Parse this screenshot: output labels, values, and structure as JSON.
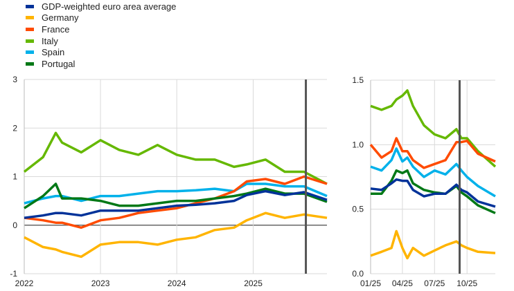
{
  "legend": [
    {
      "name": "GDP-weighted euro area average",
      "color": "#003299"
    },
    {
      "name": "Germany",
      "color": "#ffb400"
    },
    {
      "name": "France",
      "color": "#ff4b00"
    },
    {
      "name": "Italy",
      "color": "#65b800"
    },
    {
      "name": "Spain",
      "color": "#00b1ea"
    },
    {
      "name": "Portugal",
      "color": "#007816"
    }
  ],
  "chart_data": [
    {
      "type": "line",
      "xlim": [
        "2022-01-01",
        "2025-12-20"
      ],
      "ylim": [
        -1,
        3
      ],
      "yticks": [
        "-1",
        "0",
        "1",
        "2",
        "3"
      ],
      "xticks": [
        {
          "label": "2022",
          "date": "2022-01-01"
        },
        {
          "label": "2023",
          "date": "2023-01-01"
        },
        {
          "label": "2024",
          "date": "2024-01-01"
        },
        {
          "label": "2025",
          "date": "2025-01-01"
        }
      ],
      "grid": true,
      "vertical_line": "2025-09-10",
      "x": [
        "2022-01-01",
        "2022-04-01",
        "2022-06-01",
        "2022-07-01",
        "2022-10-01",
        "2023-01-01",
        "2023-04-01",
        "2023-07-01",
        "2023-10-01",
        "2024-01-01",
        "2024-04-01",
        "2024-07-01",
        "2024-10-01",
        "2024-12-01",
        "2025-03-01",
        "2025-06-01",
        "2025-09-01",
        "2025-12-20"
      ],
      "series": [
        {
          "name": "Italy",
          "color": "#65b800",
          "values": [
            1.1,
            1.4,
            1.9,
            1.7,
            1.5,
            1.75,
            1.55,
            1.45,
            1.65,
            1.45,
            1.35,
            1.35,
            1.2,
            1.25,
            1.35,
            1.1,
            1.1,
            0.85
          ]
        },
        {
          "name": "Germany",
          "color": "#ffb400",
          "values": [
            -0.25,
            -0.45,
            -0.5,
            -0.55,
            -0.65,
            -0.4,
            -0.35,
            -0.35,
            -0.4,
            -0.3,
            -0.25,
            -0.1,
            -0.05,
            0.1,
            0.25,
            0.15,
            0.22,
            0.15
          ]
        },
        {
          "name": "Spain",
          "color": "#00b1ea",
          "values": [
            0.45,
            0.55,
            0.6,
            0.6,
            0.5,
            0.6,
            0.6,
            0.65,
            0.7,
            0.7,
            0.72,
            0.75,
            0.7,
            0.85,
            0.85,
            0.8,
            0.8,
            0.6
          ]
        },
        {
          "name": "France",
          "color": "#ff4b00",
          "values": [
            0.15,
            0.1,
            0.05,
            0.05,
            -0.05,
            0.1,
            0.15,
            0.25,
            0.3,
            0.35,
            0.45,
            0.55,
            0.7,
            0.9,
            0.95,
            0.85,
            1.0,
            0.85
          ]
        },
        {
          "name": "Portugal",
          "color": "#007816",
          "values": [
            0.35,
            0.6,
            0.85,
            0.55,
            0.55,
            0.5,
            0.4,
            0.4,
            0.45,
            0.5,
            0.5,
            0.55,
            0.6,
            0.65,
            0.75,
            0.65,
            0.65,
            0.48
          ]
        },
        {
          "name": "GDP-weighted euro area average",
          "color": "#003299",
          "values": [
            0.15,
            0.2,
            0.25,
            0.25,
            0.2,
            0.3,
            0.3,
            0.3,
            0.35,
            0.4,
            0.42,
            0.45,
            0.5,
            0.62,
            0.7,
            0.62,
            0.68,
            0.52
          ]
        }
      ]
    },
    {
      "type": "line",
      "xlim": [
        "2025-01-01",
        "2025-12-20"
      ],
      "ylim": [
        0,
        1.5
      ],
      "yticks": [
        "0.0",
        "0.5",
        "1.0",
        "1.5"
      ],
      "xticks": [
        {
          "label": "01/25",
          "date": "2025-01-01"
        },
        {
          "label": "04/25",
          "date": "2025-04-01"
        },
        {
          "label": "07/25",
          "date": "2025-07-01"
        },
        {
          "label": "10/25",
          "date": "2025-10-01"
        }
      ],
      "grid": true,
      "vertical_line": "2025-09-10",
      "x": [
        "2025-01-01",
        "2025-02-01",
        "2025-03-01",
        "2025-03-15",
        "2025-04-01",
        "2025-04-15",
        "2025-05-01",
        "2025-06-01",
        "2025-07-01",
        "2025-08-01",
        "2025-09-01",
        "2025-09-15",
        "2025-10-01",
        "2025-11-01",
        "2025-12-20"
      ],
      "series": [
        {
          "name": "Italy",
          "color": "#65b800",
          "values": [
            1.3,
            1.27,
            1.3,
            1.35,
            1.38,
            1.42,
            1.3,
            1.15,
            1.08,
            1.05,
            1.12,
            1.05,
            1.05,
            0.95,
            0.83
          ]
        },
        {
          "name": "France",
          "color": "#ff4b00",
          "values": [
            1.0,
            0.9,
            0.95,
            1.05,
            0.95,
            0.95,
            0.88,
            0.82,
            0.85,
            0.88,
            1.02,
            1.02,
            1.03,
            0.93,
            0.87
          ]
        },
        {
          "name": "Spain",
          "color": "#00b1ea",
          "values": [
            0.83,
            0.8,
            0.88,
            0.97,
            0.87,
            0.9,
            0.83,
            0.75,
            0.8,
            0.77,
            0.85,
            0.8,
            0.75,
            0.68,
            0.6
          ]
        },
        {
          "name": "Portugal",
          "color": "#007816",
          "values": [
            0.62,
            0.62,
            0.72,
            0.8,
            0.78,
            0.8,
            0.7,
            0.65,
            0.63,
            0.62,
            0.68,
            0.63,
            0.6,
            0.53,
            0.47
          ]
        },
        {
          "name": "GDP-weighted euro area average",
          "color": "#003299",
          "values": [
            0.66,
            0.65,
            0.7,
            0.73,
            0.72,
            0.72,
            0.65,
            0.6,
            0.62,
            0.62,
            0.69,
            0.65,
            0.63,
            0.56,
            0.52
          ]
        },
        {
          "name": "Germany",
          "color": "#ffb400",
          "values": [
            0.14,
            0.17,
            0.2,
            0.33,
            0.2,
            0.12,
            0.2,
            0.14,
            0.18,
            0.22,
            0.25,
            0.22,
            0.2,
            0.17,
            0.16
          ]
        }
      ]
    }
  ]
}
